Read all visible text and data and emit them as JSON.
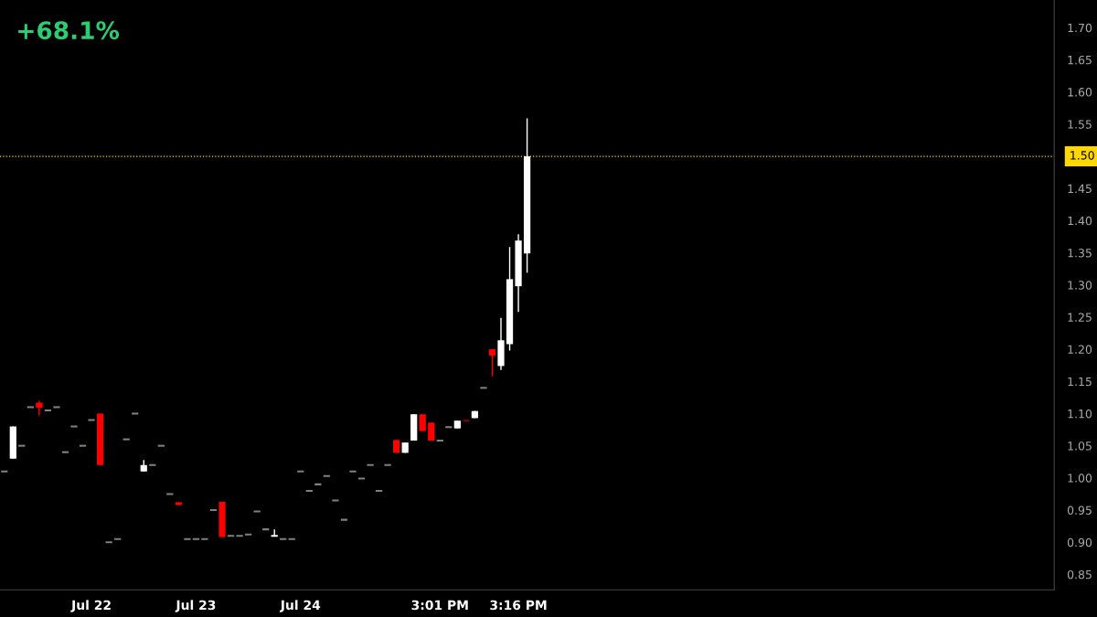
{
  "chart_data": {
    "type": "candlestick",
    "title": "+68.1%",
    "categories": [
      null,
      null,
      null,
      null,
      null,
      null,
      null,
      null,
      null,
      null,
      "Jul 22",
      null,
      null,
      null,
      null,
      null,
      null,
      null,
      null,
      null,
      null,
      null,
      "Jul 23",
      null,
      null,
      null,
      null,
      null,
      null,
      null,
      null,
      null,
      null,
      null,
      "Jul 24",
      null,
      null,
      null,
      null,
      null,
      null,
      null,
      null,
      null,
      null,
      null,
      null,
      null,
      null,
      null,
      "3:01 PM",
      null,
      null,
      null,
      null,
      null,
      null,
      null,
      null,
      "3:16 PM",
      null,
      null,
      null,
      null,
      null,
      null,
      null,
      null,
      null,
      null,
      null,
      null,
      null,
      null,
      null,
      null,
      null,
      null,
      null,
      null,
      null,
      null,
      null,
      null,
      null,
      null,
      null,
      null,
      null,
      null,
      null,
      null,
      null,
      null,
      null,
      null,
      null,
      null,
      null,
      null,
      null,
      null,
      null,
      null,
      null,
      null,
      null,
      null,
      null,
      null,
      null,
      null,
      null,
      null,
      null,
      null,
      null,
      null,
      null,
      null,
      null
    ],
    "ohlc": [
      [
        1.01,
        1.01,
        1.01,
        1.01
      ],
      [
        1.03,
        1.08,
        1.03,
        1.08
      ],
      [
        1.05,
        1.05,
        1.05,
        1.05
      ],
      [
        1.11,
        1.11,
        1.11,
        1.11
      ],
      [
        1.117,
        1.12,
        1.097,
        1.109
      ],
      [
        1.105,
        1.105,
        1.105,
        1.105
      ],
      [
        1.11,
        1.11,
        1.11,
        1.11
      ],
      [
        1.04,
        1.04,
        1.04,
        1.04
      ],
      [
        1.08,
        1.08,
        1.08,
        1.08
      ],
      [
        1.05,
        1.05,
        1.05,
        1.05
      ],
      [
        1.09,
        1.09,
        1.09,
        1.09
      ],
      [
        1.1,
        1.1,
        1.02,
        1.02
      ],
      [
        0.9,
        0.9,
        0.9,
        0.9
      ],
      [
        0.905,
        0.905,
        0.905,
        0.905
      ],
      [
        1.06,
        1.06,
        1.06,
        1.06
      ],
      [
        1.1,
        1.1,
        1.1,
        1.1
      ],
      [
        1.01,
        1.028,
        1.01,
        1.02
      ],
      [
        1.02,
        1.02,
        1.02,
        1.02
      ],
      [
        1.05,
        1.05,
        1.05,
        1.05
      ],
      [
        0.975,
        0.975,
        0.975,
        0.975
      ],
      [
        0.962,
        0.962,
        0.958,
        0.958
      ],
      [
        0.905,
        0.905,
        0.905,
        0.905
      ],
      [
        0.905,
        0.905,
        0.905,
        0.905
      ],
      [
        0.905,
        0.905,
        0.905,
        0.905
      ],
      [
        0.95,
        0.95,
        0.95,
        0.95
      ],
      [
        0.963,
        0.963,
        0.908,
        0.908
      ],
      [
        0.91,
        0.91,
        0.91,
        0.91
      ],
      [
        0.91,
        0.91,
        0.91,
        0.91
      ],
      [
        0.912,
        0.912,
        0.912,
        0.912
      ],
      [
        0.948,
        0.948,
        0.948,
        0.948
      ],
      [
        0.92,
        0.92,
        0.92,
        0.92
      ],
      [
        0.91,
        0.92,
        0.91,
        0.91
      ],
      [
        0.905,
        0.905,
        0.905,
        0.905
      ],
      [
        0.905,
        0.905,
        0.905,
        0.905
      ],
      [
        1.01,
        1.01,
        1.01,
        1.01
      ],
      [
        0.98,
        0.98,
        0.98,
        0.98
      ],
      [
        0.99,
        0.99,
        0.99,
        0.99
      ],
      [
        1.003,
        1.003,
        1.003,
        1.003
      ],
      [
        0.965,
        0.965,
        0.965,
        0.965
      ],
      [
        0.935,
        0.935,
        0.935,
        0.935
      ],
      [
        1.01,
        1.01,
        1.01,
        1.01
      ],
      [
        0.999,
        0.999,
        0.999,
        0.999
      ],
      [
        1.02,
        1.02,
        1.02,
        1.02
      ],
      [
        0.98,
        0.98,
        0.98,
        0.98
      ],
      [
        1.02,
        1.02,
        1.02,
        1.02
      ],
      [
        1.059,
        1.059,
        1.039,
        1.039
      ],
      [
        1.039,
        1.055,
        1.039,
        1.055
      ],
      [
        1.058,
        1.099,
        1.058,
        1.099
      ],
      [
        1.099,
        1.099,
        1.073,
        1.073
      ],
      [
        1.086,
        1.086,
        1.058,
        1.058
      ],
      [
        1.058,
        1.058,
        1.058,
        1.058
      ],
      [
        1.079,
        1.079,
        1.079,
        1.079
      ],
      [
        1.077,
        1.089,
        1.077,
        1.089
      ],
      [
        1.089,
        1.089,
        1.089,
        1.089
      ],
      [
        1.093,
        1.104,
        1.093,
        1.104
      ],
      [
        1.14,
        1.14,
        1.14,
        1.14
      ],
      [
        1.2,
        1.2,
        1.158,
        1.19
      ],
      [
        1.174,
        1.249,
        1.168,
        1.214
      ],
      [
        1.208,
        1.359,
        1.198,
        1.309
      ],
      [
        1.298,
        1.379,
        1.258,
        1.369
      ],
      [
        1.349,
        1.559,
        1.319,
        1.5
      ],
      null,
      null,
      null,
      null,
      null,
      null,
      null,
      null,
      null,
      null,
      null,
      null,
      null,
      null,
      null,
      null,
      null,
      null,
      null,
      null,
      null,
      null,
      null,
      null,
      null,
      null,
      null,
      null,
      null,
      null,
      null,
      null,
      null,
      null,
      null,
      null,
      null,
      null,
      null,
      null,
      null,
      null,
      null,
      null,
      null,
      null,
      null,
      null,
      null,
      null,
      null,
      null,
      null,
      null,
      null,
      null,
      null,
      null,
      null,
      null
    ],
    "colors": [
      "#808080",
      "#ffffff",
      "#808080",
      "#808080",
      "#ff0000",
      "#808080",
      "#808080",
      "#808080",
      "#808080",
      "#808080",
      "#808080",
      "#ff0000",
      "#808080",
      "#808080",
      "#808080",
      "#808080",
      "#ffffff",
      "#808080",
      "#808080",
      "#808080",
      "#ff0000",
      "#808080",
      "#808080",
      "#808080",
      "#808080",
      "#ff0000",
      "#808080",
      "#808080",
      "#808080",
      "#808080",
      "#808080",
      "#ffffff",
      "#808080",
      "#808080",
      "#808080",
      "#808080",
      "#808080",
      "#808080",
      "#808080",
      "#808080",
      "#808080",
      "#808080",
      "#808080",
      "#808080",
      "#808080",
      "#ff0000",
      "#ffffff",
      "#ffffff",
      "#ff0000",
      "#ff0000",
      "#808080",
      "#808080",
      "#ffffff",
      "#8b0000",
      "#ffffff",
      "#808080",
      "#ff0000",
      "#ffffff",
      "#ffffff",
      "#ffffff",
      "#ffffff",
      null,
      null,
      null,
      null,
      null,
      null,
      null,
      null,
      null,
      null,
      null,
      null,
      null,
      null,
      null,
      null,
      null,
      null,
      null,
      null,
      null,
      null,
      null,
      null,
      null,
      null,
      null,
      null,
      null,
      null,
      null,
      null,
      null,
      null,
      null,
      null,
      null,
      null,
      null,
      null,
      null,
      null,
      null,
      null,
      null,
      null,
      null,
      null,
      null,
      null,
      null,
      null,
      null,
      null,
      null,
      null,
      null,
      null,
      null,
      null
    ],
    "ylim": [
      0.826,
      1.743
    ],
    "yticks": [
      {
        "value": 0.85,
        "label": "0.85"
      },
      {
        "value": 0.9,
        "label": "0.90"
      },
      {
        "value": 0.95,
        "label": "0.95"
      },
      {
        "value": 1.0,
        "label": "1.00"
      },
      {
        "value": 1.05,
        "label": "1.05"
      },
      {
        "value": 1.1,
        "label": "1.10"
      },
      {
        "value": 1.15,
        "label": "1.15"
      },
      {
        "value": 1.2,
        "label": "1.20"
      },
      {
        "value": 1.25,
        "label": "1.25"
      },
      {
        "value": 1.3,
        "label": "1.30"
      },
      {
        "value": 1.35,
        "label": "1.35"
      },
      {
        "value": 1.4,
        "label": "1.40"
      },
      {
        "value": 1.45,
        "label": "1.45"
      },
      {
        "value": 1.5,
        "label": null
      },
      {
        "value": 1.55,
        "label": "1.55"
      },
      {
        "value": 1.6,
        "label": "1.60"
      },
      {
        "value": 1.65,
        "label": "1.65"
      },
      {
        "value": 1.7,
        "label": "1.70"
      }
    ],
    "ref_lines": [
      {
        "axis": "y",
        "value": 1.5,
        "label": "1.50",
        "color": "#ffd700",
        "line_style": "dotted"
      }
    ],
    "grid": false,
    "legend": false
  }
}
